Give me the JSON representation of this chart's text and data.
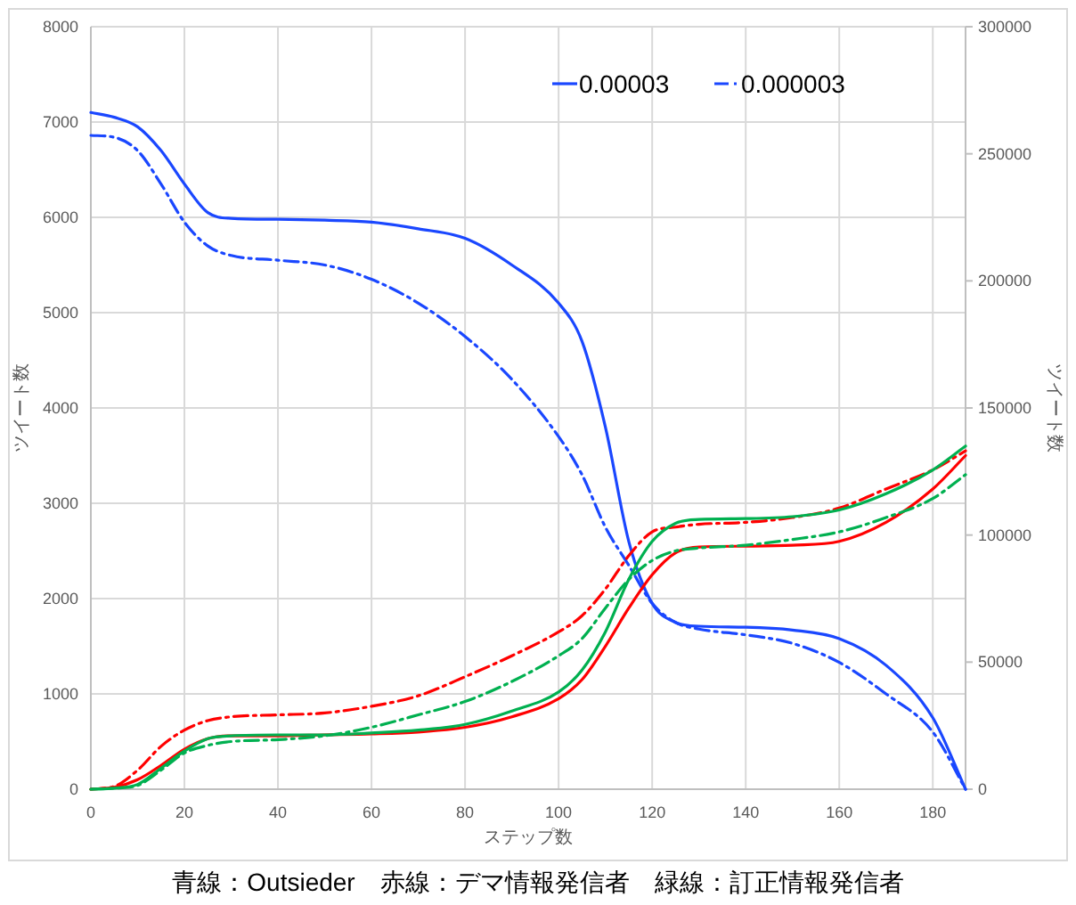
{
  "chart_data": {
    "type": "line",
    "xlabel": "ステップ数",
    "ylabel": "ツイート数",
    "y2label": "ツイート数",
    "xlim": [
      0,
      187
    ],
    "ylim": [
      0,
      8000
    ],
    "y2lim": [
      0,
      300000
    ],
    "xticks": [
      0,
      20,
      40,
      60,
      80,
      100,
      120,
      140,
      160,
      180
    ],
    "yticks": [
      0,
      1000,
      2000,
      3000,
      4000,
      5000,
      6000,
      7000,
      8000
    ],
    "y2ticks": [
      0,
      50000,
      100000,
      150000,
      200000,
      250000,
      300000
    ],
    "grid": true,
    "legend": "top right",
    "marker": "none",
    "x": [
      0,
      5,
      10,
      15,
      20,
      25,
      30,
      40,
      50,
      60,
      70,
      80,
      90,
      100,
      105,
      110,
      115,
      120,
      125,
      130,
      140,
      150,
      160,
      170,
      180,
      187
    ],
    "series": [
      {
        "name": "0.00003",
        "color": "#1a47ff",
        "line_style": "solid",
        "values": [
          7100,
          7050,
          6950,
          6700,
          6350,
          6050,
          5990,
          5980,
          5970,
          5950,
          5880,
          5780,
          5500,
          5100,
          4700,
          3800,
          2600,
          1950,
          1750,
          1710,
          1700,
          1670,
          1580,
          1300,
          750,
          0
        ]
      },
      {
        "name": "0.000003",
        "color": "#1a47ff",
        "line_style": "dashdot",
        "values": [
          6860,
          6840,
          6700,
          6350,
          5950,
          5700,
          5600,
          5550,
          5500,
          5350,
          5100,
          4750,
          4300,
          3700,
          3300,
          2750,
          2350,
          1950,
          1750,
          1680,
          1620,
          1530,
          1330,
          1000,
          600,
          0
        ]
      },
      {
        "color": "#ff0000",
        "line_style": "solid",
        "values": [
          0,
          20,
          100,
          250,
          420,
          530,
          560,
          560,
          570,
          580,
          600,
          650,
          760,
          950,
          1150,
          1500,
          1900,
          2250,
          2480,
          2540,
          2550,
          2560,
          2600,
          2800,
          3150,
          3500
        ]
      },
      {
        "color": "#ff0000",
        "line_style": "dashdot",
        "values": [
          0,
          30,
          200,
          450,
          620,
          720,
          760,
          780,
          800,
          870,
          980,
          1180,
          1400,
          1650,
          1820,
          2100,
          2450,
          2700,
          2750,
          2780,
          2800,
          2850,
          2950,
          3150,
          3350,
          3550
        ]
      },
      {
        "color": "#00b050",
        "line_style": "solid",
        "values": [
          0,
          10,
          50,
          220,
          400,
          530,
          560,
          570,
          570,
          590,
          620,
          680,
          820,
          1020,
          1250,
          1650,
          2200,
          2600,
          2790,
          2830,
          2840,
          2860,
          2930,
          3100,
          3350,
          3600
        ]
      },
      {
        "color": "#00b050",
        "line_style": "dashdot",
        "values": [
          0,
          10,
          40,
          200,
          380,
          460,
          500,
          520,
          560,
          650,
          780,
          920,
          1130,
          1400,
          1580,
          1900,
          2200,
          2400,
          2500,
          2530,
          2560,
          2620,
          2700,
          2850,
          3050,
          3300
        ]
      }
    ],
    "annotations": [
      "青線：Outsieder　赤線：デマ情報発信者　緑線：訂正情報発信者"
    ]
  }
}
